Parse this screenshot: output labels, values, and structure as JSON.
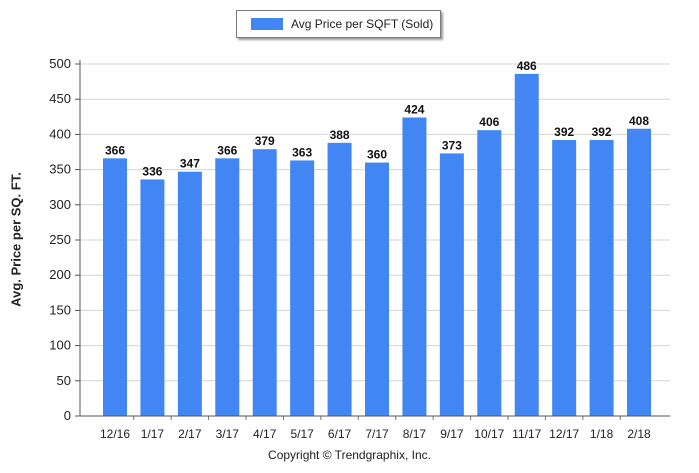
{
  "chart_data": {
    "type": "bar",
    "categories": [
      "12/16",
      "1/17",
      "2/17",
      "3/17",
      "4/17",
      "5/17",
      "6/17",
      "7/17",
      "8/17",
      "9/17",
      "10/17",
      "11/17",
      "12/17",
      "1/18",
      "2/18"
    ],
    "series": [
      {
        "name": "Avg Price per SQFT (Sold)",
        "values": [
          366,
          336,
          347,
          366,
          379,
          363,
          388,
          360,
          424,
          373,
          406,
          486,
          392,
          392,
          408
        ]
      }
    ],
    "ylabel": "Avg. Price per SQ. FT.",
    "xlabel": "",
    "ylim": [
      0,
      500
    ],
    "yticks": [
      0,
      50,
      100,
      150,
      200,
      250,
      300,
      350,
      400,
      450,
      500
    ],
    "grid": true,
    "legend_position": "top-center",
    "bar_color": "#4286f4",
    "data_labels": true
  },
  "footer": {
    "copyright": "Copyright © Trendgraphix, Inc."
  }
}
